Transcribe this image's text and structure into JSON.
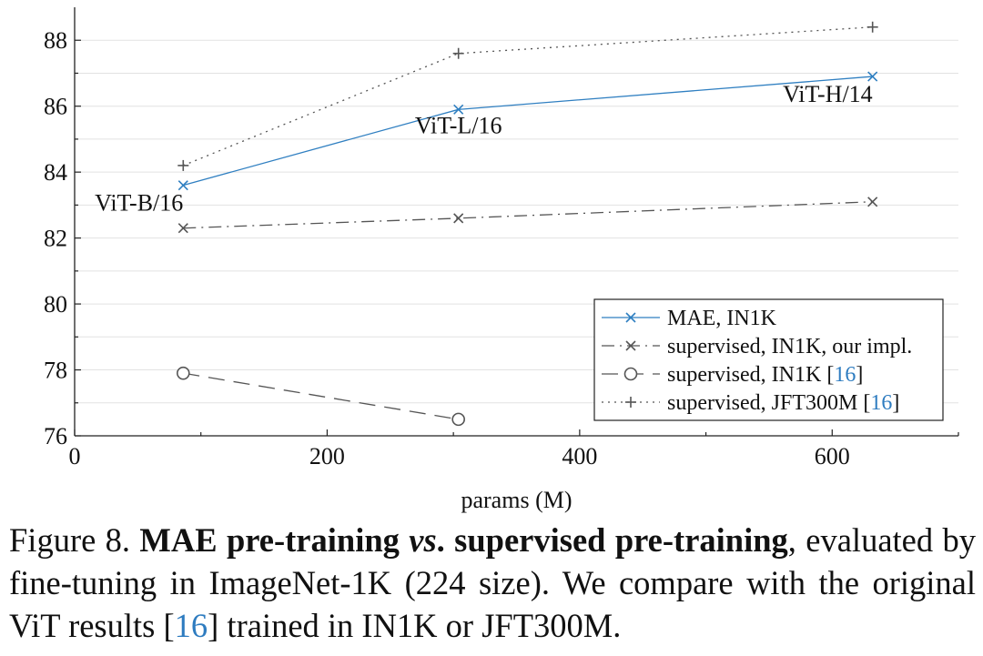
{
  "chart_data": {
    "type": "line",
    "title": "",
    "xlabel": "params (M)",
    "ylabel": "",
    "xlim": [
      0,
      700
    ],
    "ylim": [
      76,
      89
    ],
    "x_ticks": [
      0,
      200,
      400,
      600
    ],
    "y_ticks": [
      76,
      78,
      80,
      82,
      84,
      86,
      88
    ],
    "grid": "horizontal",
    "legend_position": "bottom-right",
    "series": [
      {
        "name": "MAE, IN1K",
        "color": "#2f7fc1",
        "style": "solid",
        "marker": "x",
        "x": [
          86,
          304,
          632
        ],
        "y": [
          83.6,
          85.9,
          86.9
        ]
      },
      {
        "name": "supervised, IN1K, our impl.",
        "color": "#555555",
        "style": "dashdot",
        "marker": "x",
        "x": [
          86,
          304,
          632
        ],
        "y": [
          82.3,
          82.6,
          83.1
        ]
      },
      {
        "name": "supervised, IN1K",
        "ref": "16",
        "color": "#555555",
        "style": "dashed",
        "marker": "o",
        "x": [
          86,
          304
        ],
        "y": [
          77.9,
          76.5
        ]
      },
      {
        "name": "supervised, JFT300M",
        "ref": "16",
        "color": "#555555",
        "style": "dotted",
        "marker": "+",
        "x": [
          86,
          304,
          632
        ],
        "y": [
          84.2,
          87.6,
          88.4
        ]
      }
    ],
    "annotations": [
      {
        "text": "ViT-B/16",
        "x": 86,
        "y": 83.6,
        "anchor": "end"
      },
      {
        "text": "ViT-L/16",
        "x": 304,
        "y": 85.9,
        "anchor": "middle"
      },
      {
        "text": "ViT-H/14",
        "x": 632,
        "y": 86.9,
        "anchor": "end"
      }
    ]
  },
  "caption": {
    "figure_label": "Figure 8.",
    "bold_1": "MAE pre-training ",
    "bold_vs": "vs",
    "bold_2": ". supervised pre-training",
    "text_1": ", evaluated by fine-tuning in ImageNet-1K (224 size). We compare with the original ViT results [",
    "ref": "16",
    "text_2": "] trained in IN1K or JFT300M."
  }
}
